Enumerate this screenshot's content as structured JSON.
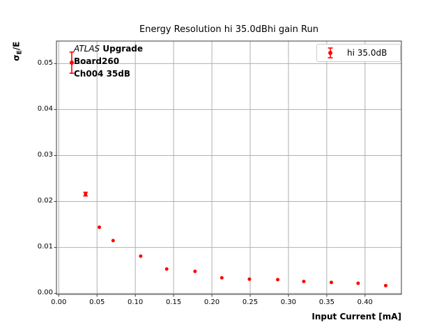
{
  "figure": {
    "title": "Energy Resolution hi 35.0dBhi gain Run",
    "background_color": "#ffffff"
  },
  "axes": {
    "xlabel": "Input Current [mA]",
    "ylabel_sigma": "σ",
    "ylabel_subscript": "E",
    "ylabel_rest": "/E",
    "xtick_labels": [
      "0.00",
      "0.05",
      "0.10",
      "0.15",
      "0.20",
      "0.25",
      "0.30",
      "0.35",
      "0.40"
    ],
    "ytick_labels": [
      "0.00",
      "0.01",
      "0.02",
      "0.03",
      "0.04",
      "0.05"
    ],
    "grid_color": "#b0b0b0",
    "spine_color": "#3a3a3a"
  },
  "annotation": {
    "line1_italic": "ATLAS",
    "line1_bold": " Upgrade",
    "line2": "Board260",
    "line3": "Ch004 35dB"
  },
  "legend": {
    "label": "hi 35.0dB",
    "marker": "errorbar-point-icon",
    "marker_color": "#ff0000",
    "position": "upper right"
  },
  "chart_data": {
    "type": "scatter",
    "title": "Energy Resolution hi 35.0dBhi gain Run",
    "xlabel": "Input Current [mA]",
    "ylabel": "sigma_E/E",
    "grid": true,
    "legend_position": "upper right",
    "xlim": [
      -0.003,
      0.4475
    ],
    "ylim": [
      -0.0002,
      0.0549
    ],
    "xticks": [
      0.0,
      0.05,
      0.1,
      0.15,
      0.2,
      0.25,
      0.3,
      0.35,
      0.4
    ],
    "yticks": [
      0.0,
      0.01,
      0.02,
      0.03,
      0.04,
      0.05
    ],
    "series": [
      {
        "name": "hi 35.0dB",
        "color": "#ff0000",
        "marker": "circle",
        "has_error_bars": true,
        "x": [
          0.017,
          0.035,
          0.053,
          0.071,
          0.107,
          0.141,
          0.178,
          0.213,
          0.249,
          0.286,
          0.32,
          0.356,
          0.391,
          0.427
        ],
        "y": [
          0.0502,
          0.0216,
          0.0144,
          0.0115,
          0.0081,
          0.0053,
          0.0048,
          0.0034,
          0.0031,
          0.003,
          0.0026,
          0.0024,
          0.0022,
          0.0017
        ],
        "yerr": [
          0.0023,
          0.0004,
          0,
          0,
          0,
          0,
          0,
          0,
          0,
          0,
          0,
          0,
          0,
          0
        ]
      }
    ]
  }
}
